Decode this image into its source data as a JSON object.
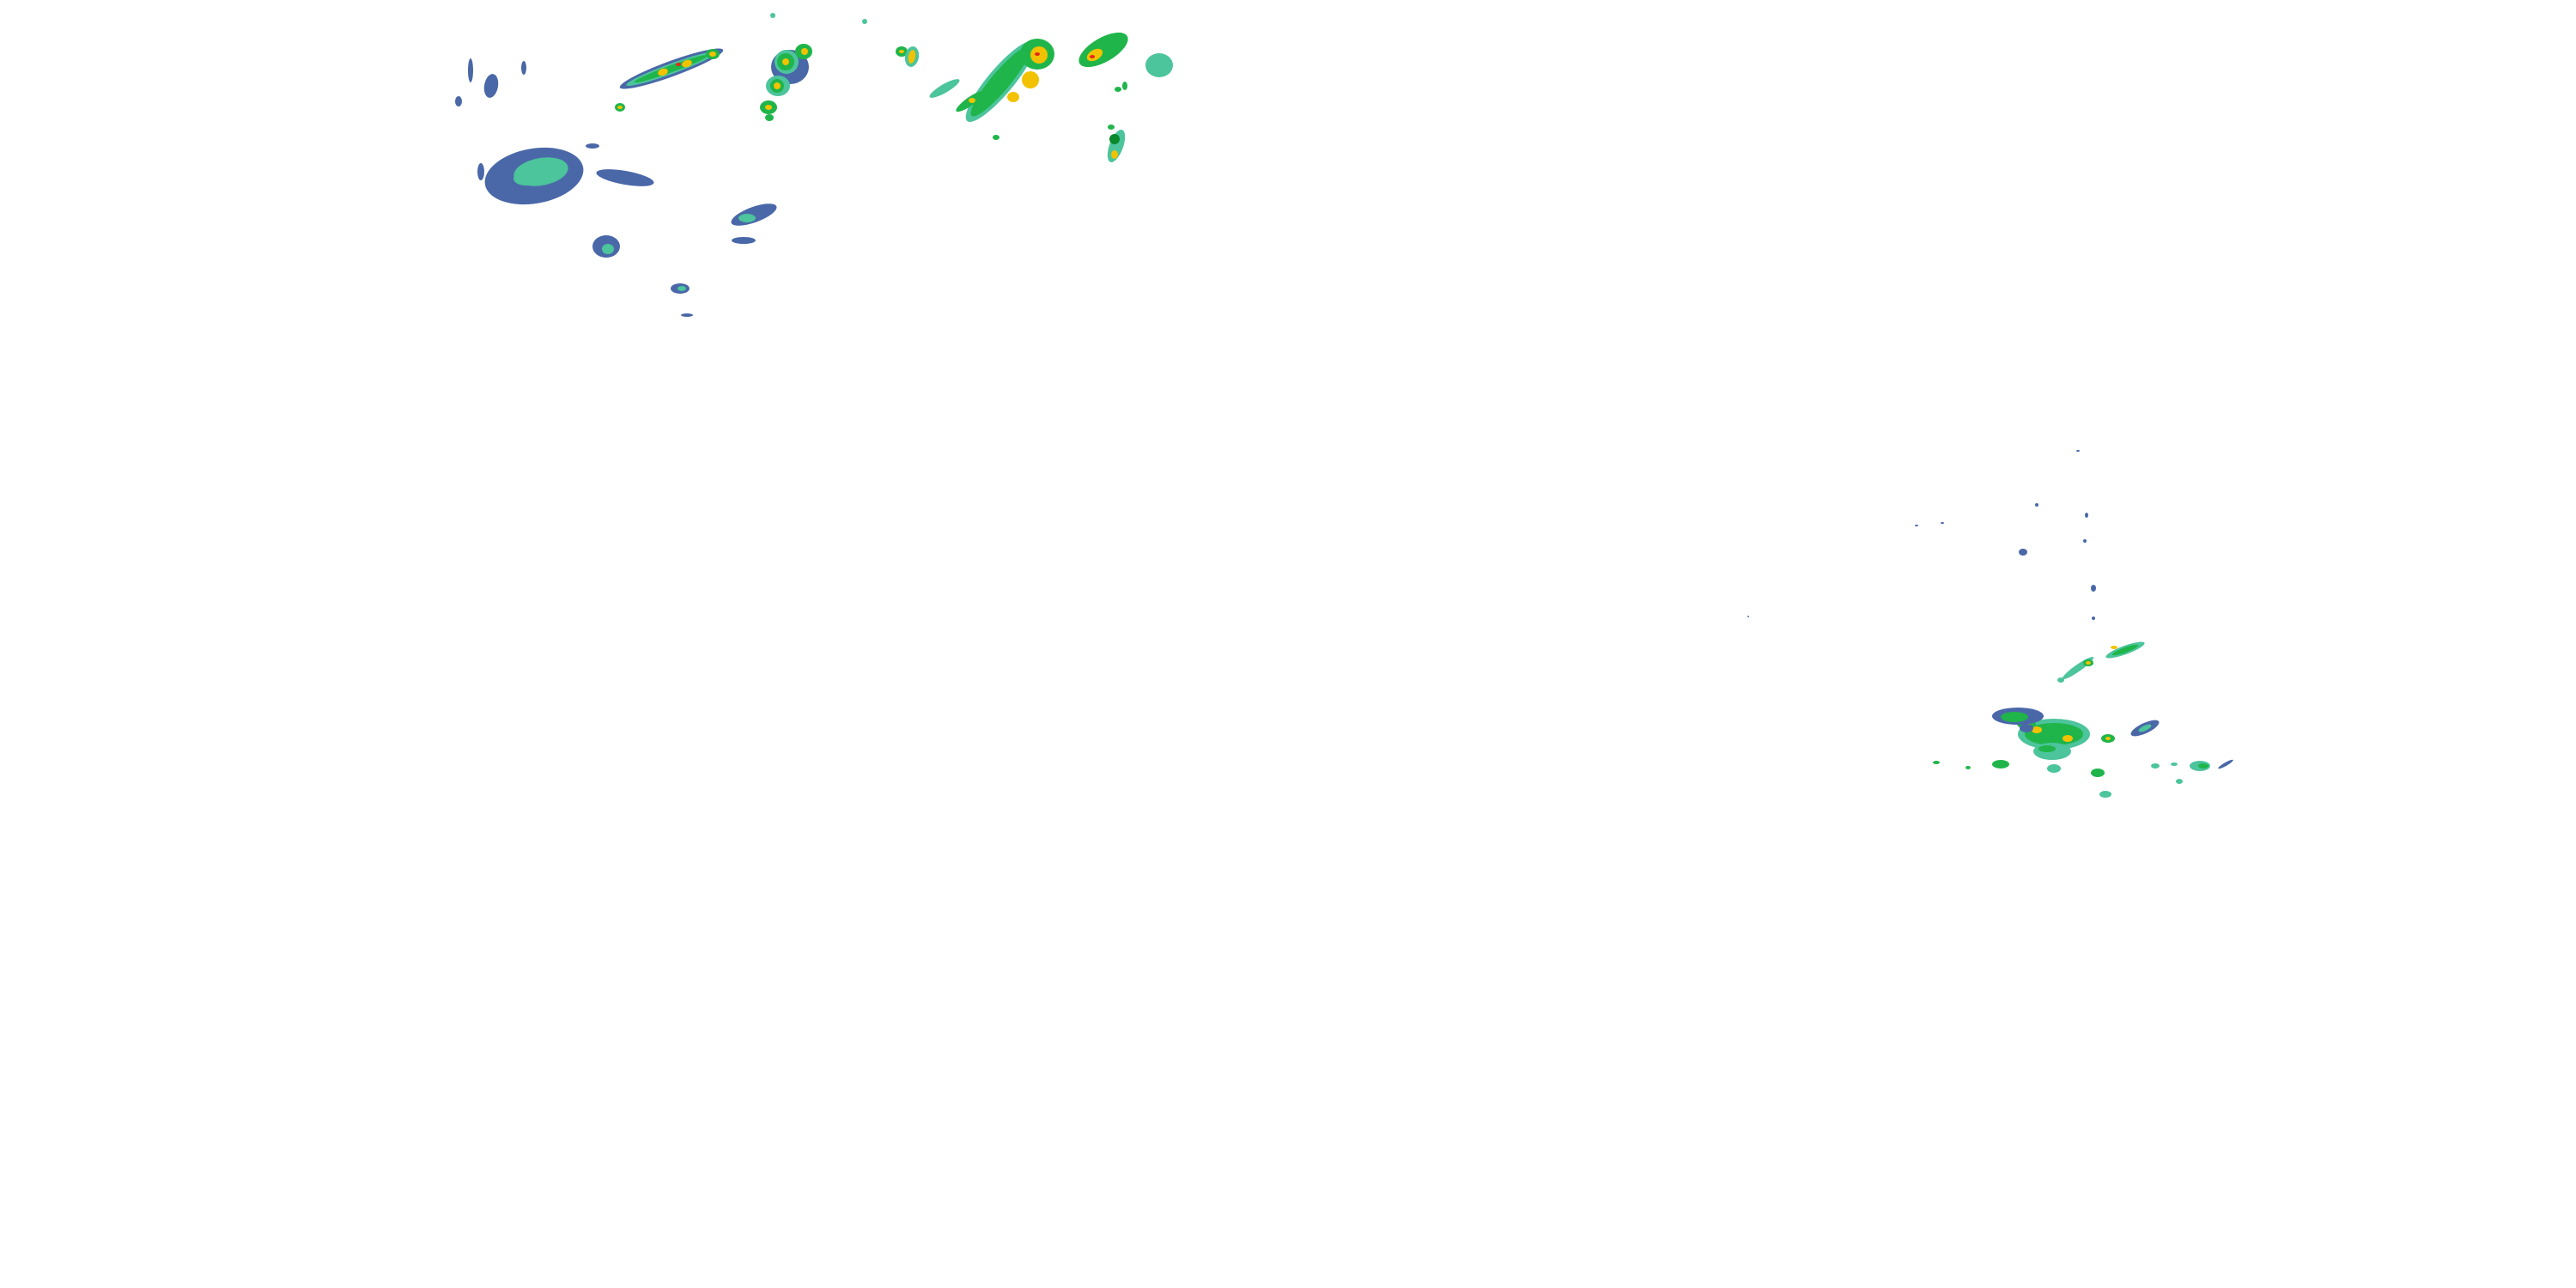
{
  "map": {
    "layer": "radar-reflectivity",
    "palette": {
      "light": "#4a68a8",
      "light_moderate": "#4cc49c",
      "moderate": "#1fb54a",
      "moderate_heavy": "#0a8a2c",
      "heavy": "#f2c200",
      "intense": "#e4261c"
    }
  }
}
